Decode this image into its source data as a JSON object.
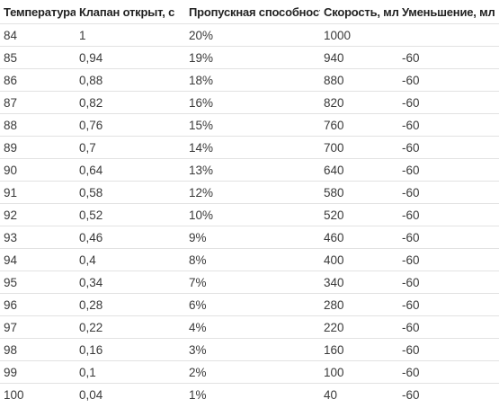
{
  "table": {
    "headers": [
      "Температура",
      "Клапан открыт, с",
      "Пропускная способность",
      "Скорость, мл",
      "Уменьшение, мл"
    ],
    "rows": [
      [
        "84",
        "1",
        "20%",
        "1000",
        ""
      ],
      [
        "85",
        "0,94",
        "19%",
        "940",
        "-60"
      ],
      [
        "86",
        "0,88",
        "18%",
        "880",
        "-60"
      ],
      [
        "87",
        "0,82",
        "16%",
        "820",
        "-60"
      ],
      [
        "88",
        "0,76",
        "15%",
        "760",
        "-60"
      ],
      [
        "89",
        "0,7",
        "14%",
        "700",
        "-60"
      ],
      [
        "90",
        "0,64",
        "13%",
        "640",
        "-60"
      ],
      [
        "91",
        "0,58",
        "12%",
        "580",
        "-60"
      ],
      [
        "92",
        "0,52",
        "10%",
        "520",
        "-60"
      ],
      [
        "93",
        "0,46",
        "9%",
        "460",
        "-60"
      ],
      [
        "94",
        "0,4",
        "8%",
        "400",
        "-60"
      ],
      [
        "95",
        "0,34",
        "7%",
        "340",
        "-60"
      ],
      [
        "96",
        "0,28",
        "6%",
        "280",
        "-60"
      ],
      [
        "97",
        "0,22",
        "4%",
        "220",
        "-60"
      ],
      [
        "98",
        "0,16",
        "3%",
        "160",
        "-60"
      ],
      [
        "99",
        "0,1",
        "2%",
        "100",
        "-60"
      ],
      [
        "100",
        "0,04",
        "1%",
        "40",
        "-60"
      ]
    ]
  }
}
